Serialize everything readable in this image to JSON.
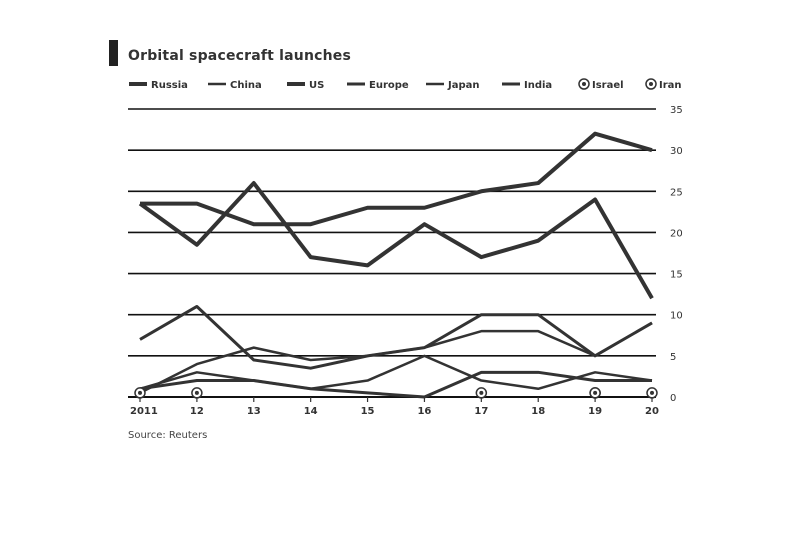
{
  "title": "Orbital spacecraft launches",
  "source": "Source: Reuters",
  "chart_data": {
    "type": "line",
    "title": "Orbital spacecraft launches",
    "xlabel": "",
    "ylabel": "",
    "x": [
      "2011",
      "12",
      "13",
      "14",
      "15",
      "16",
      "17",
      "18",
      "19",
      "20"
    ],
    "ylim": [
      0,
      35
    ],
    "yticks": [
      0,
      5,
      10,
      15,
      20,
      25,
      30,
      35
    ],
    "grid": true,
    "legend": "top",
    "series": [
      {
        "name": "Russia",
        "marker": "none",
        "values": [
          23.5,
          18.5,
          26,
          17,
          16,
          21,
          17,
          19,
          24,
          12
        ]
      },
      {
        "name": "China",
        "marker": "none",
        "values": [
          0.5,
          4,
          6,
          4.5,
          5,
          6,
          8,
          8,
          5,
          9
        ]
      },
      {
        "name": "US",
        "marker": "none",
        "values": [
          23.5,
          23.5,
          21,
          21,
          23,
          23,
          25,
          26,
          32,
          30
        ]
      },
      {
        "name": "Europe",
        "marker": "none",
        "values": [
          7,
          11,
          4.5,
          3.5,
          5,
          6,
          10,
          10,
          5,
          9
        ]
      },
      {
        "name": "Japan",
        "marker": "none",
        "values": [
          1,
          3,
          2,
          1,
          2,
          5,
          2,
          1,
          3,
          2
        ]
      },
      {
        "name": "India",
        "marker": "none",
        "values": [
          1,
          2,
          2,
          1,
          0.5,
          0,
          3,
          3,
          2,
          2
        ]
      },
      {
        "name": "Israel",
        "marker": "circle",
        "values": [
          0.5,
          0.5,
          null,
          null,
          null,
          null,
          0.5,
          null,
          0.5,
          null
        ]
      },
      {
        "name": "Iran",
        "marker": "circle",
        "values": [
          null,
          null,
          null,
          null,
          null,
          null,
          null,
          null,
          0.5,
          0.5
        ]
      }
    ]
  },
  "colors": {
    "line": "#333333",
    "grid": "#111111",
    "axis": "#333333"
  }
}
